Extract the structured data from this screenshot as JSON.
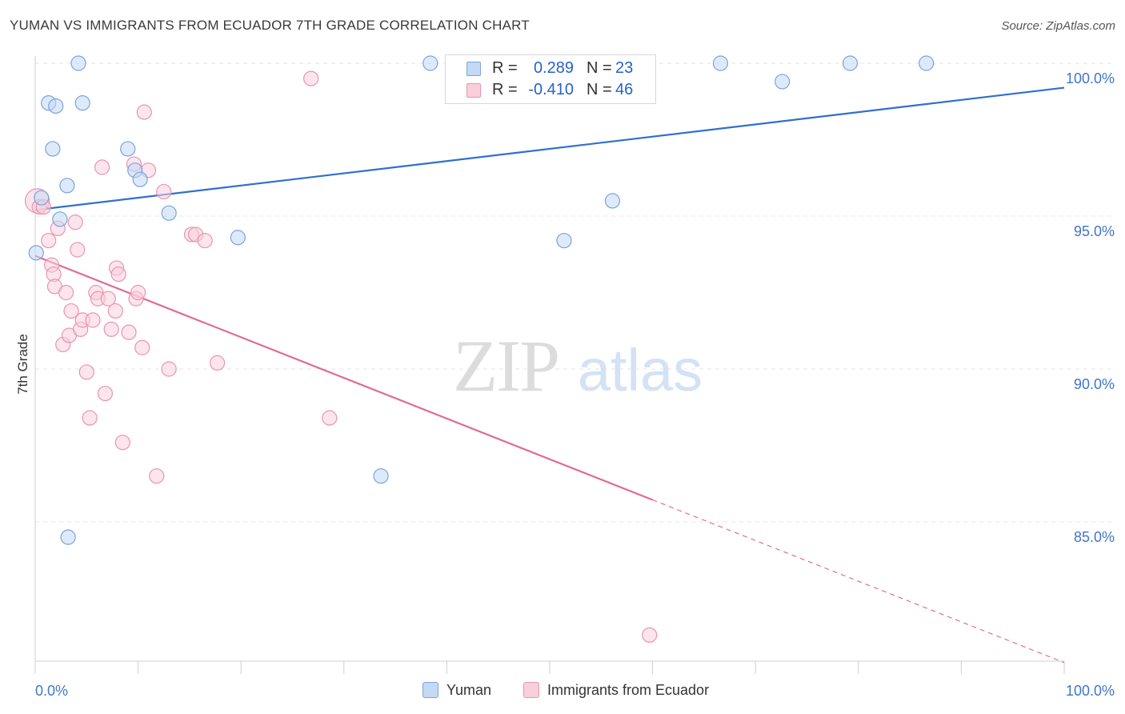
{
  "title": "YUMAN VS IMMIGRANTS FROM ECUADOR 7TH GRADE CORRELATION CHART",
  "source": "Source: ZipAtlas.com",
  "watermark": {
    "zip": "ZIP",
    "atlas": "atlas"
  },
  "legend": {
    "yuman": {
      "r_label": "R =",
      "r_value": "0.289",
      "n_label": "N =",
      "n_value": "23"
    },
    "ecuador": {
      "r_label": "R =",
      "r_value": "-0.410",
      "n_label": "N =",
      "n_value": "46"
    }
  },
  "colors": {
    "blue_fill": "#c3d9f6",
    "blue_stroke": "#7aa3dc",
    "blue_line": "#2f6fd0",
    "pink_fill": "#f9cfdc",
    "pink_stroke": "#e894b0",
    "pink_line": "#e06a96",
    "grid": "#e6e6e6",
    "axis_label": "#3f76c9"
  },
  "chart_data": {
    "type": "scatter",
    "xlabel": "",
    "ylabel": "7th Grade",
    "xlim": [
      0,
      100
    ],
    "ylim": [
      80.2,
      100.6
    ],
    "x_tick_labels": [
      "0.0%",
      "100.0%"
    ],
    "y_ticks": [
      100,
      95,
      90,
      85
    ],
    "y_tick_labels": [
      "100.0%",
      "95.0%",
      "90.0%",
      "85.0%"
    ],
    "grid": true,
    "series": [
      {
        "name": "Yuman",
        "color": "blue",
        "points": [
          [
            0.1,
            93.8
          ],
          [
            0.6,
            95.6
          ],
          [
            1.3,
            98.7
          ],
          [
            1.7,
            97.2
          ],
          [
            2.0,
            98.6
          ],
          [
            2.4,
            94.9
          ],
          [
            3.1,
            96.0
          ],
          [
            3.2,
            84.5
          ],
          [
            4.2,
            100.0
          ],
          [
            4.6,
            98.7
          ],
          [
            9.0,
            97.2
          ],
          [
            9.7,
            96.5
          ],
          [
            10.2,
            96.2
          ],
          [
            13.0,
            95.1
          ],
          [
            19.7,
            94.3
          ],
          [
            33.6,
            86.5
          ],
          [
            38.4,
            100.0
          ],
          [
            51.4,
            94.2
          ],
          [
            56.1,
            95.5
          ],
          [
            66.6,
            100.0
          ],
          [
            72.6,
            99.4
          ],
          [
            79.2,
            100.0
          ],
          [
            86.6,
            100.0
          ]
        ],
        "trendline": {
          "x": [
            0,
            100
          ],
          "y": [
            95.2,
            99.2
          ],
          "style": "solid"
        }
      },
      {
        "name": "Immigrants from Ecuador",
        "color": "pink",
        "points": [
          [
            0.2,
            95.5
          ],
          [
            0.4,
            95.3
          ],
          [
            0.8,
            95.3
          ],
          [
            1.3,
            94.2
          ],
          [
            1.6,
            93.4
          ],
          [
            1.8,
            93.1
          ],
          [
            1.9,
            92.7
          ],
          [
            2.2,
            94.6
          ],
          [
            2.7,
            90.8
          ],
          [
            3.0,
            92.5
          ],
          [
            3.3,
            91.1
          ],
          [
            3.5,
            91.9
          ],
          [
            3.9,
            94.8
          ],
          [
            4.1,
            93.9
          ],
          [
            4.4,
            91.3
          ],
          [
            4.6,
            91.6
          ],
          [
            5.0,
            89.9
          ],
          [
            5.3,
            88.4
          ],
          [
            5.6,
            91.6
          ],
          [
            5.9,
            92.5
          ],
          [
            6.1,
            92.3
          ],
          [
            6.5,
            96.6
          ],
          [
            6.8,
            89.2
          ],
          [
            7.1,
            92.3
          ],
          [
            7.4,
            91.3
          ],
          [
            7.8,
            91.9
          ],
          [
            7.9,
            93.3
          ],
          [
            8.1,
            93.1
          ],
          [
            8.5,
            87.6
          ],
          [
            9.1,
            91.2
          ],
          [
            9.6,
            96.7
          ],
          [
            9.8,
            92.3
          ],
          [
            10.0,
            92.5
          ],
          [
            10.4,
            90.7
          ],
          [
            10.6,
            98.4
          ],
          [
            11.0,
            96.5
          ],
          [
            11.8,
            86.5
          ],
          [
            12.5,
            95.8
          ],
          [
            13.0,
            90.0
          ],
          [
            15.2,
            94.4
          ],
          [
            15.6,
            94.4
          ],
          [
            16.5,
            94.2
          ],
          [
            17.7,
            90.2
          ],
          [
            26.8,
            99.5
          ],
          [
            28.6,
            88.4
          ],
          [
            59.7,
            81.3
          ]
        ],
        "trendline": {
          "x": [
            0,
            100
          ],
          "y": [
            93.7,
            80.4
          ],
          "solid_until_x": 60,
          "style": "solid-then-dashed"
        }
      }
    ]
  },
  "bottom_legend": [
    "Yuman",
    "Immigrants from Ecuador"
  ]
}
